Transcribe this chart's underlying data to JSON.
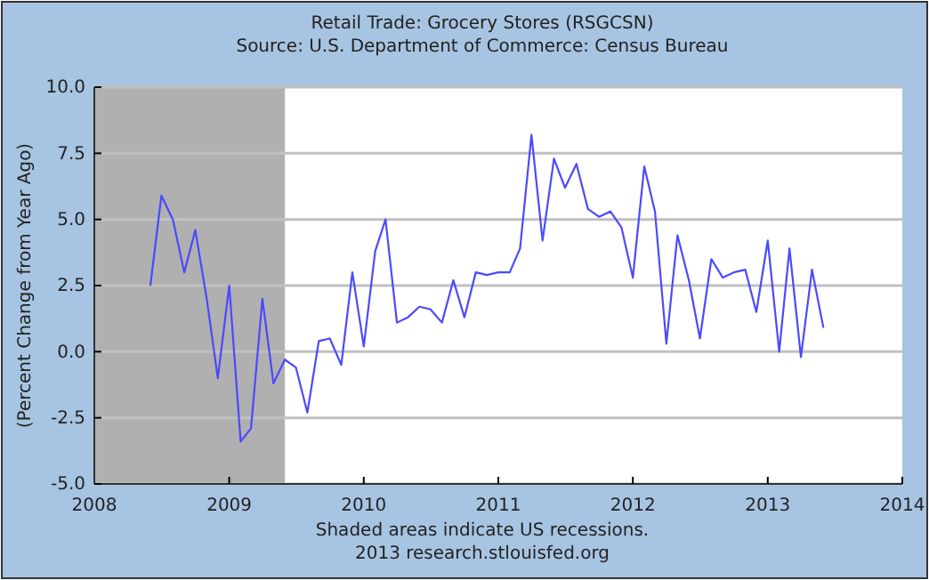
{
  "chart_data": {
    "type": "line",
    "title": "Retail Trade: Grocery Stores (RSGCSN)",
    "subtitle": "Source: U.S. Department of Commerce: Census Bureau",
    "ylabel": "(Percent Change from Year Ago)",
    "annotations": [
      "Shaded areas indicate US recessions.",
      "2013 research.stlouisfed.org"
    ],
    "x": [
      "2008-06",
      "2008-07",
      "2008-08",
      "2008-09",
      "2008-10",
      "2008-11",
      "2008-12",
      "2009-01",
      "2009-02",
      "2009-03",
      "2009-04",
      "2009-05",
      "2009-06",
      "2009-07",
      "2009-08",
      "2009-09",
      "2009-10",
      "2009-11",
      "2009-12",
      "2010-01",
      "2010-02",
      "2010-03",
      "2010-04",
      "2010-05",
      "2010-06",
      "2010-07",
      "2010-08",
      "2010-09",
      "2010-10",
      "2010-11",
      "2010-12",
      "2011-01",
      "2011-02",
      "2011-03",
      "2011-04",
      "2011-05",
      "2011-06",
      "2011-07",
      "2011-08",
      "2011-09",
      "2011-10",
      "2011-11",
      "2011-12",
      "2012-01",
      "2012-02",
      "2012-03",
      "2012-04",
      "2012-05",
      "2012-06",
      "2012-07",
      "2012-08",
      "2012-09",
      "2012-10",
      "2012-11",
      "2012-12",
      "2013-01",
      "2013-02",
      "2013-03",
      "2013-04",
      "2013-05",
      "2013-06"
    ],
    "series": [
      {
        "color": "#4a4aff",
        "values": [
          2.5,
          5.9,
          5.0,
          3.0,
          4.6,
          2.0,
          -1.0,
          2.5,
          -3.4,
          -2.9,
          2.0,
          -1.2,
          -0.3,
          -0.6,
          -2.3,
          0.4,
          0.5,
          -0.5,
          3.0,
          0.2,
          3.8,
          5.0,
          1.1,
          1.3,
          1.7,
          1.6,
          1.1,
          2.7,
          1.3,
          3.0,
          2.9,
          3.0,
          3.0,
          3.9,
          8.2,
          4.2,
          7.3,
          6.2,
          7.1,
          5.4,
          5.1,
          5.3,
          4.7,
          2.8,
          7.0,
          5.3,
          0.3,
          4.4,
          2.7,
          0.5,
          3.5,
          2.8,
          3.0,
          3.1,
          1.5,
          4.2,
          0.0,
          3.9,
          -0.2,
          3.1,
          0.9
        ]
      }
    ],
    "xlim": [
      "2008",
      "2014"
    ],
    "xticks": [
      {
        "value": "2008",
        "label": "2008"
      },
      {
        "value": "2009",
        "label": "2009"
      },
      {
        "value": "2010",
        "label": "2010"
      },
      {
        "value": "2011",
        "label": "2011"
      },
      {
        "value": "2012",
        "label": "2012"
      },
      {
        "value": "2013",
        "label": "2013"
      },
      {
        "value": "2014",
        "label": "2014"
      }
    ],
    "ylim": [
      -5,
      10
    ],
    "yticks": [
      {
        "value": -5,
        "label": "-5.0"
      },
      {
        "value": -2.5,
        "label": "-2.5"
      },
      {
        "value": 0,
        "label": "0.0"
      },
      {
        "value": 2.5,
        "label": "2.5"
      },
      {
        "value": 5,
        "label": "5.0"
      },
      {
        "value": 7.5,
        "label": "7.5"
      },
      {
        "value": 10,
        "label": "10.0"
      }
    ],
    "bands": [
      {
        "axis": "x",
        "from": "2008-01",
        "to": "2009-06",
        "color": "#b0b0b0"
      }
    ],
    "grid": "y",
    "marker": "none",
    "line_style": "solid"
  }
}
